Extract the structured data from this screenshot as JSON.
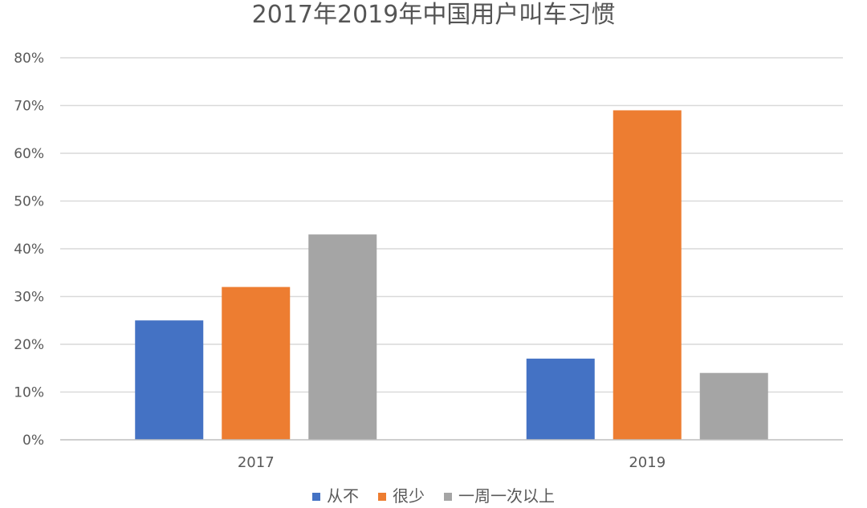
{
  "chart_data": {
    "type": "bar",
    "title": "2017年2019年中国用户叫车习惯",
    "xlabel": "",
    "ylabel": "",
    "categories": [
      "2017",
      "2019"
    ],
    "series": [
      {
        "name": "从不",
        "color": "#4472c4",
        "values": [
          25,
          17
        ]
      },
      {
        "name": "很少",
        "color": "#ed7d31",
        "values": [
          32,
          69
        ]
      },
      {
        "name": "一周一次以上",
        "color": "#a5a5a5",
        "values": [
          43,
          14
        ]
      }
    ],
    "ylim": [
      0,
      80
    ],
    "yticks": [
      0,
      10,
      20,
      30,
      40,
      50,
      60,
      70,
      80
    ],
    "ytick_format": "percent",
    "grid": true,
    "legend_position": "bottom"
  }
}
